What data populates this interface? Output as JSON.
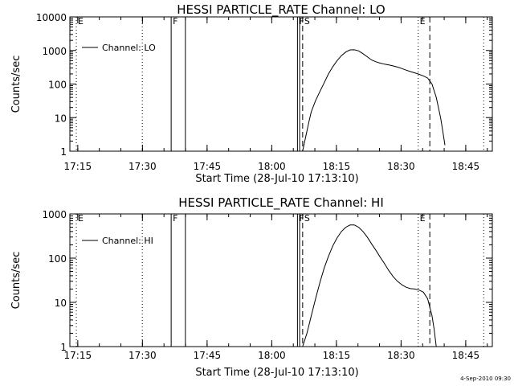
{
  "chart_data": [
    {
      "type": "line",
      "title": "HESSI PARTICLE_RATE Channel: LO",
      "xlabel": "Start Time (28-Jul-10 17:13:10)",
      "ylabel": "Counts/sec",
      "x_ticks": [
        "17:15",
        "17:30",
        "17:45",
        "18:00",
        "18:15",
        "18:30",
        "18:45"
      ],
      "y_ticks": [
        "1",
        "10",
        "100",
        "1000",
        "10000"
      ],
      "yscale": "log",
      "ylim": [
        1,
        10000
      ],
      "xlim_minutes": [
        0,
        98
      ],
      "legend": "top-left",
      "series": [
        {
          "name": "Channel: LO",
          "points": [
            [
              54.0,
              1
            ],
            [
              54.5,
              2
            ],
            [
              55.0,
              4
            ],
            [
              55.5,
              8
            ],
            [
              56.0,
              15
            ],
            [
              57.0,
              32
            ],
            [
              58.0,
              60
            ],
            [
              59.0,
              110
            ],
            [
              60.0,
              200
            ],
            [
              61.0,
              330
            ],
            [
              62.0,
              500
            ],
            [
              63.0,
              700
            ],
            [
              64.0,
              900
            ],
            [
              65.0,
              1040
            ],
            [
              66.0,
              1050
            ],
            [
              67.0,
              970
            ],
            [
              68.0,
              800
            ],
            [
              69.0,
              650
            ],
            [
              70.0,
              520
            ],
            [
              71.0,
              460
            ],
            [
              72.0,
              420
            ],
            [
              73.0,
              390
            ],
            [
              74.0,
              370
            ],
            [
              75.0,
              345
            ],
            [
              76.0,
              320
            ],
            [
              77.0,
              290
            ],
            [
              78.0,
              260
            ],
            [
              79.0,
              235
            ],
            [
              80.0,
              215
            ],
            [
              81.0,
              195
            ],
            [
              82.0,
              175
            ],
            [
              83.0,
              150
            ],
            [
              84.0,
              100
            ],
            [
              85.0,
              40
            ],
            [
              86.0,
              10
            ],
            [
              86.5,
              4
            ],
            [
              87.0,
              1.5
            ]
          ]
        }
      ],
      "markers": [
        {
          "x": 1.5,
          "style": "dotted",
          "label": "E"
        },
        {
          "x": 16.8,
          "style": "dotted",
          "label": ""
        },
        {
          "x": 23.5,
          "style": "solid",
          "label": "F"
        },
        {
          "x": 26.8,
          "style": "solid",
          "label": ""
        },
        {
          "x": 52.8,
          "style": "solid",
          "label": "F"
        },
        {
          "x": 53.3,
          "style": "solid",
          "label": ""
        },
        {
          "x": 54.0,
          "style": "dashed",
          "label": "S"
        },
        {
          "x": 80.8,
          "style": "dotted",
          "label": "E"
        },
        {
          "x": 83.5,
          "style": "dashed",
          "label": ""
        },
        {
          "x": 96.0,
          "style": "dotted",
          "label": ""
        }
      ]
    },
    {
      "type": "line",
      "title": "HESSI PARTICLE_RATE Channel: HI",
      "xlabel": "Start Time (28-Jul-10 17:13:10)",
      "ylabel": "Counts/sec",
      "x_ticks": [
        "17:15",
        "17:30",
        "17:45",
        "18:00",
        "18:15",
        "18:30",
        "18:45"
      ],
      "y_ticks": [
        "1",
        "10",
        "100",
        "1000"
      ],
      "yscale": "log",
      "ylim": [
        1,
        1000
      ],
      "xlim_minutes": [
        0,
        98
      ],
      "legend": "top-left",
      "series": [
        {
          "name": "Channel: HI",
          "points": [
            [
              54.0,
              1
            ],
            [
              55.0,
              2
            ],
            [
              56.0,
              5
            ],
            [
              57.0,
              12
            ],
            [
              58.0,
              28
            ],
            [
              59.0,
              60
            ],
            [
              60.0,
              110
            ],
            [
              61.0,
              190
            ],
            [
              62.0,
              290
            ],
            [
              63.0,
              400
            ],
            [
              64.0,
              500
            ],
            [
              65.0,
              560
            ],
            [
              66.0,
              560
            ],
            [
              67.0,
              500
            ],
            [
              68.0,
              400
            ],
            [
              69.0,
              300
            ],
            [
              70.0,
              210
            ],
            [
              71.0,
              150
            ],
            [
              72.0,
              105
            ],
            [
              73.0,
              75
            ],
            [
              74.0,
              52
            ],
            [
              75.0,
              38
            ],
            [
              76.0,
              30
            ],
            [
              77.0,
              25
            ],
            [
              78.0,
              22
            ],
            [
              79.0,
              20.5
            ],
            [
              80.0,
              20
            ],
            [
              81.0,
              19
            ],
            [
              82.0,
              17
            ],
            [
              83.0,
              12
            ],
            [
              84.0,
              5
            ],
            [
              84.5,
              2.5
            ],
            [
              85.0,
              1
            ]
          ]
        }
      ],
      "markers": [
        {
          "x": 1.5,
          "style": "dotted",
          "label": "E"
        },
        {
          "x": 16.8,
          "style": "dotted",
          "label": ""
        },
        {
          "x": 23.5,
          "style": "solid",
          "label": "F"
        },
        {
          "x": 26.8,
          "style": "solid",
          "label": ""
        },
        {
          "x": 52.8,
          "style": "solid",
          "label": "F"
        },
        {
          "x": 53.3,
          "style": "solid",
          "label": ""
        },
        {
          "x": 54.0,
          "style": "dashed",
          "label": "S"
        },
        {
          "x": 80.8,
          "style": "dotted",
          "label": "E"
        },
        {
          "x": 83.5,
          "style": "dashed",
          "label": ""
        },
        {
          "x": 96.0,
          "style": "dotted",
          "label": ""
        }
      ]
    }
  ],
  "timestamp": "4-Sep-2010 09:30"
}
